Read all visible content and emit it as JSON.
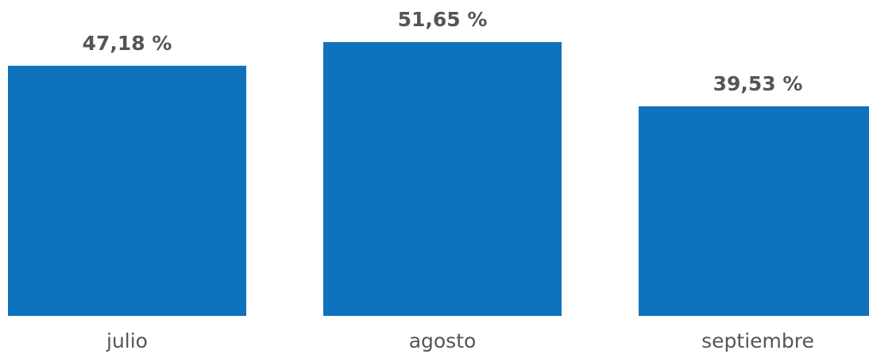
{
  "chart_data": {
    "type": "bar",
    "categories": [
      "julio",
      "agosto",
      "septiembre"
    ],
    "values": [
      47.18,
      51.65,
      39.53
    ],
    "value_labels": [
      "47,18 %",
      "51,65 %",
      "39,53 %"
    ],
    "color": "#0f72bd"
  }
}
